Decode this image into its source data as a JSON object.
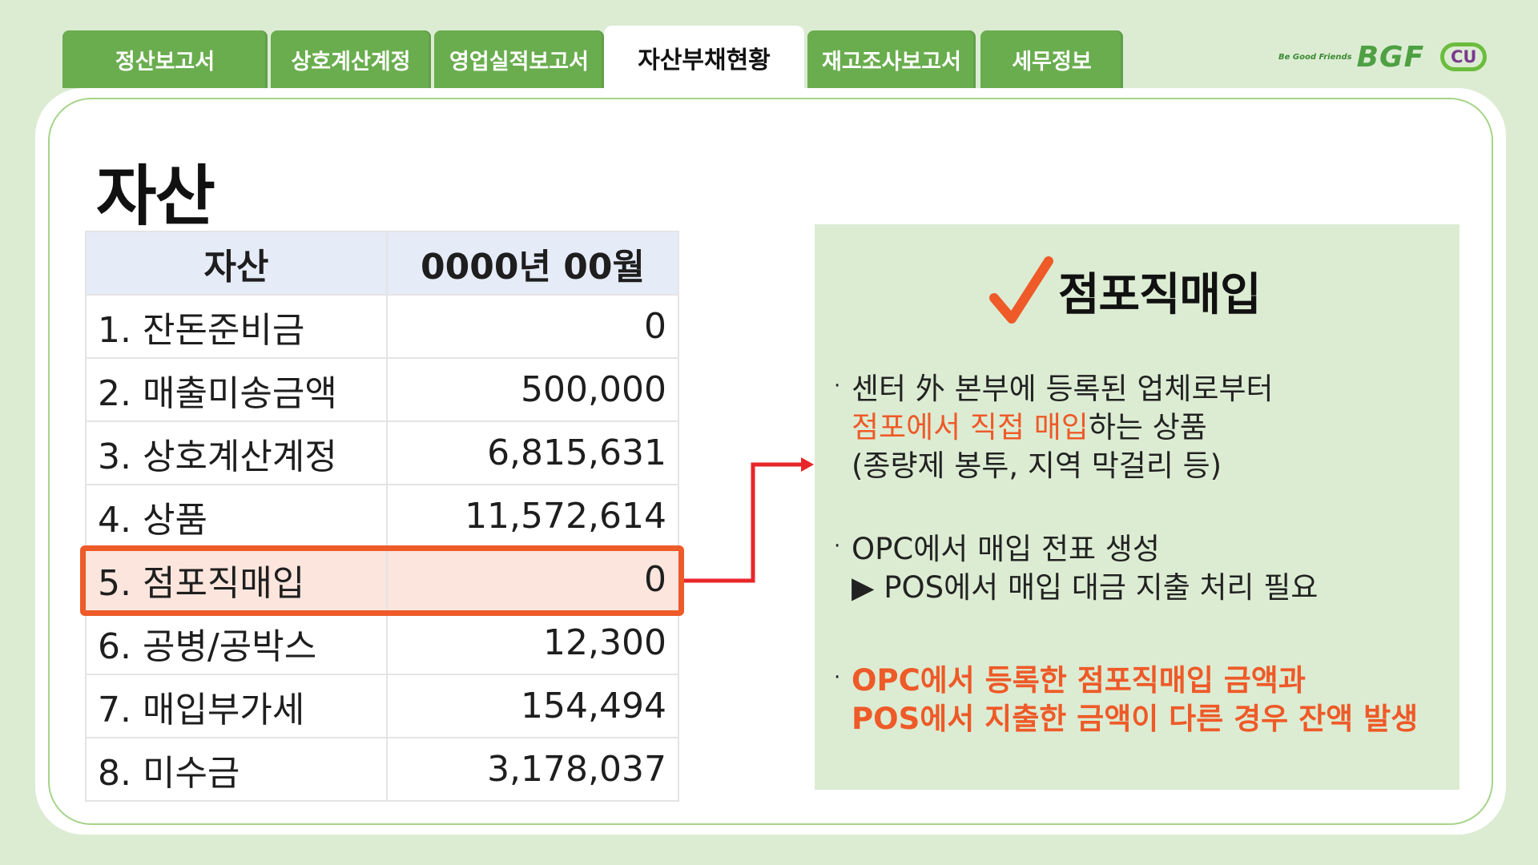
{
  "tabs": [
    {
      "label": "정산보고서"
    },
    {
      "label": "상호계산계정"
    },
    {
      "label": "영업실적보고서"
    },
    {
      "label": "자산부채현황"
    },
    {
      "label": "재고조사보고서"
    },
    {
      "label": "세무정보"
    }
  ],
  "active_tab": "자산부채현황",
  "logo": {
    "tagline": "Be Good Friends",
    "brand": "BGF",
    "store": "CU"
  },
  "page": {
    "title": "자산"
  },
  "table": {
    "header": {
      "col1": "자산",
      "col2": "0000년 00월"
    },
    "rows": [
      {
        "name": "1. 잔돈준비금",
        "value": "0"
      },
      {
        "name": "2. 매출미송금액",
        "value": "500,000"
      },
      {
        "name": "3. 상호계산계정",
        "value": "6,815,631"
      },
      {
        "name": "4. 상품",
        "value": "11,572,614"
      },
      {
        "name": "5. 점포직매입",
        "value": "0"
      },
      {
        "name": "6. 공병/공박스",
        "value": "12,300"
      },
      {
        "name": "7. 매입부가세",
        "value": "154,494"
      },
      {
        "name": "8. 미수금",
        "value": "3,178,037"
      }
    ],
    "highlighted_row": "5. 점포직매입"
  },
  "info_panel": {
    "title": "점포직매입",
    "bullets": [
      {
        "line1": "센터 外 본부에 등록된 업체로부터",
        "line2_highlight": "점포에서 직접 매입",
        "line2_rest": "하는 상품",
        "line3": "(종량제 봉투, 지역 막걸리 등)"
      },
      {
        "line1": "OPC에서 매입 전표 생성",
        "line2": "▶ POS에서 매입 대금 지출 처리 필요"
      },
      {
        "line1": "OPC에서 등록한 점포직매입 금액과",
        "line2": "POS에서 지출한 금액이 다른 경우 잔액 발생"
      }
    ]
  },
  "colors": {
    "background": "#dcecd3",
    "tab_green": "#6aad4f",
    "highlight_orange": "#ee5a28",
    "arrow_red": "#e8262a",
    "table_header": "#e6ebf8"
  }
}
